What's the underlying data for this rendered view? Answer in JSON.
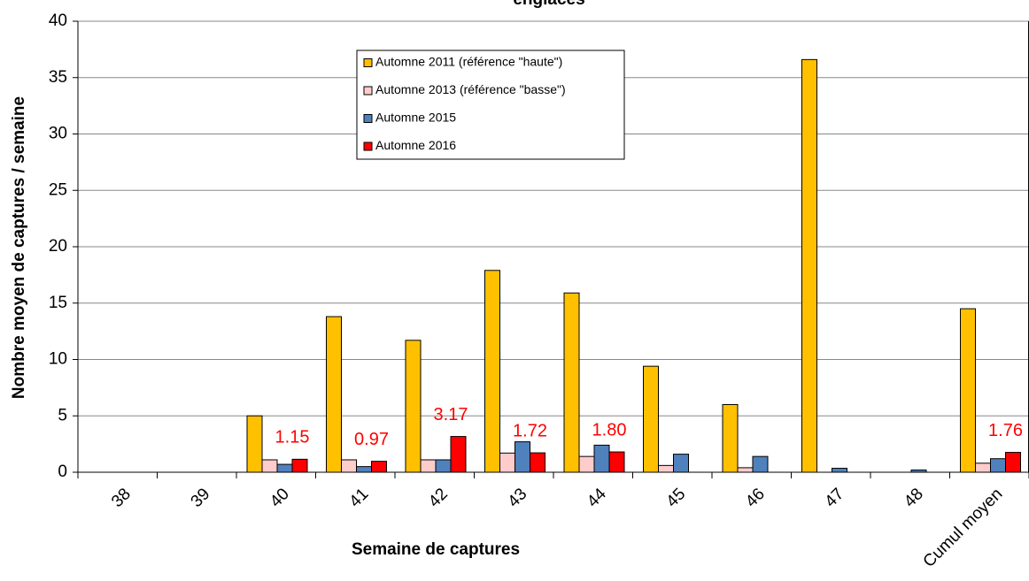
{
  "chart_data": {
    "type": "bar",
    "title": "englacés",
    "x_label": "Semaine de captures",
    "y_label": "Nombre moyen de captures / semaine",
    "categories": [
      "38",
      "39",
      "40",
      "41",
      "42",
      "43",
      "44",
      "45",
      "46",
      "47",
      "48",
      "Cumul moyen"
    ],
    "series": [
      {
        "name": "Automne 2011 (référence \"haute\")",
        "color": "#ffc000",
        "values": [
          0,
          0,
          5.0,
          13.8,
          11.7,
          17.9,
          15.9,
          9.4,
          6.0,
          36.6,
          0,
          14.5
        ]
      },
      {
        "name": "Automne 2013 (référence \"basse\")",
        "color": "#ffcccc",
        "values": [
          0,
          0,
          1.1,
          1.1,
          1.1,
          1.7,
          1.4,
          0.6,
          0.4,
          0,
          0,
          0.8
        ]
      },
      {
        "name": "Automne 2015",
        "color": "#4f81bd",
        "values": [
          0,
          0,
          0.7,
          0.5,
          1.1,
          2.7,
          2.4,
          1.6,
          1.4,
          0.35,
          0.2,
          1.2
        ]
      },
      {
        "name": "Automne 2016",
        "color": "#ff0000",
        "values": [
          0,
          0,
          1.15,
          0.97,
          3.17,
          1.72,
          1.8,
          0,
          0,
          0,
          0,
          1.76
        ],
        "value_labels": [
          null,
          null,
          "1.15",
          "0.97",
          "3.17",
          "1.72",
          "1.80",
          null,
          null,
          null,
          null,
          "1.76"
        ]
      }
    ],
    "ylim": [
      0,
      40
    ],
    "yticks": [
      0,
      5,
      10,
      15,
      20,
      25,
      30,
      35,
      40
    ],
    "grid": true,
    "legend": "top"
  }
}
